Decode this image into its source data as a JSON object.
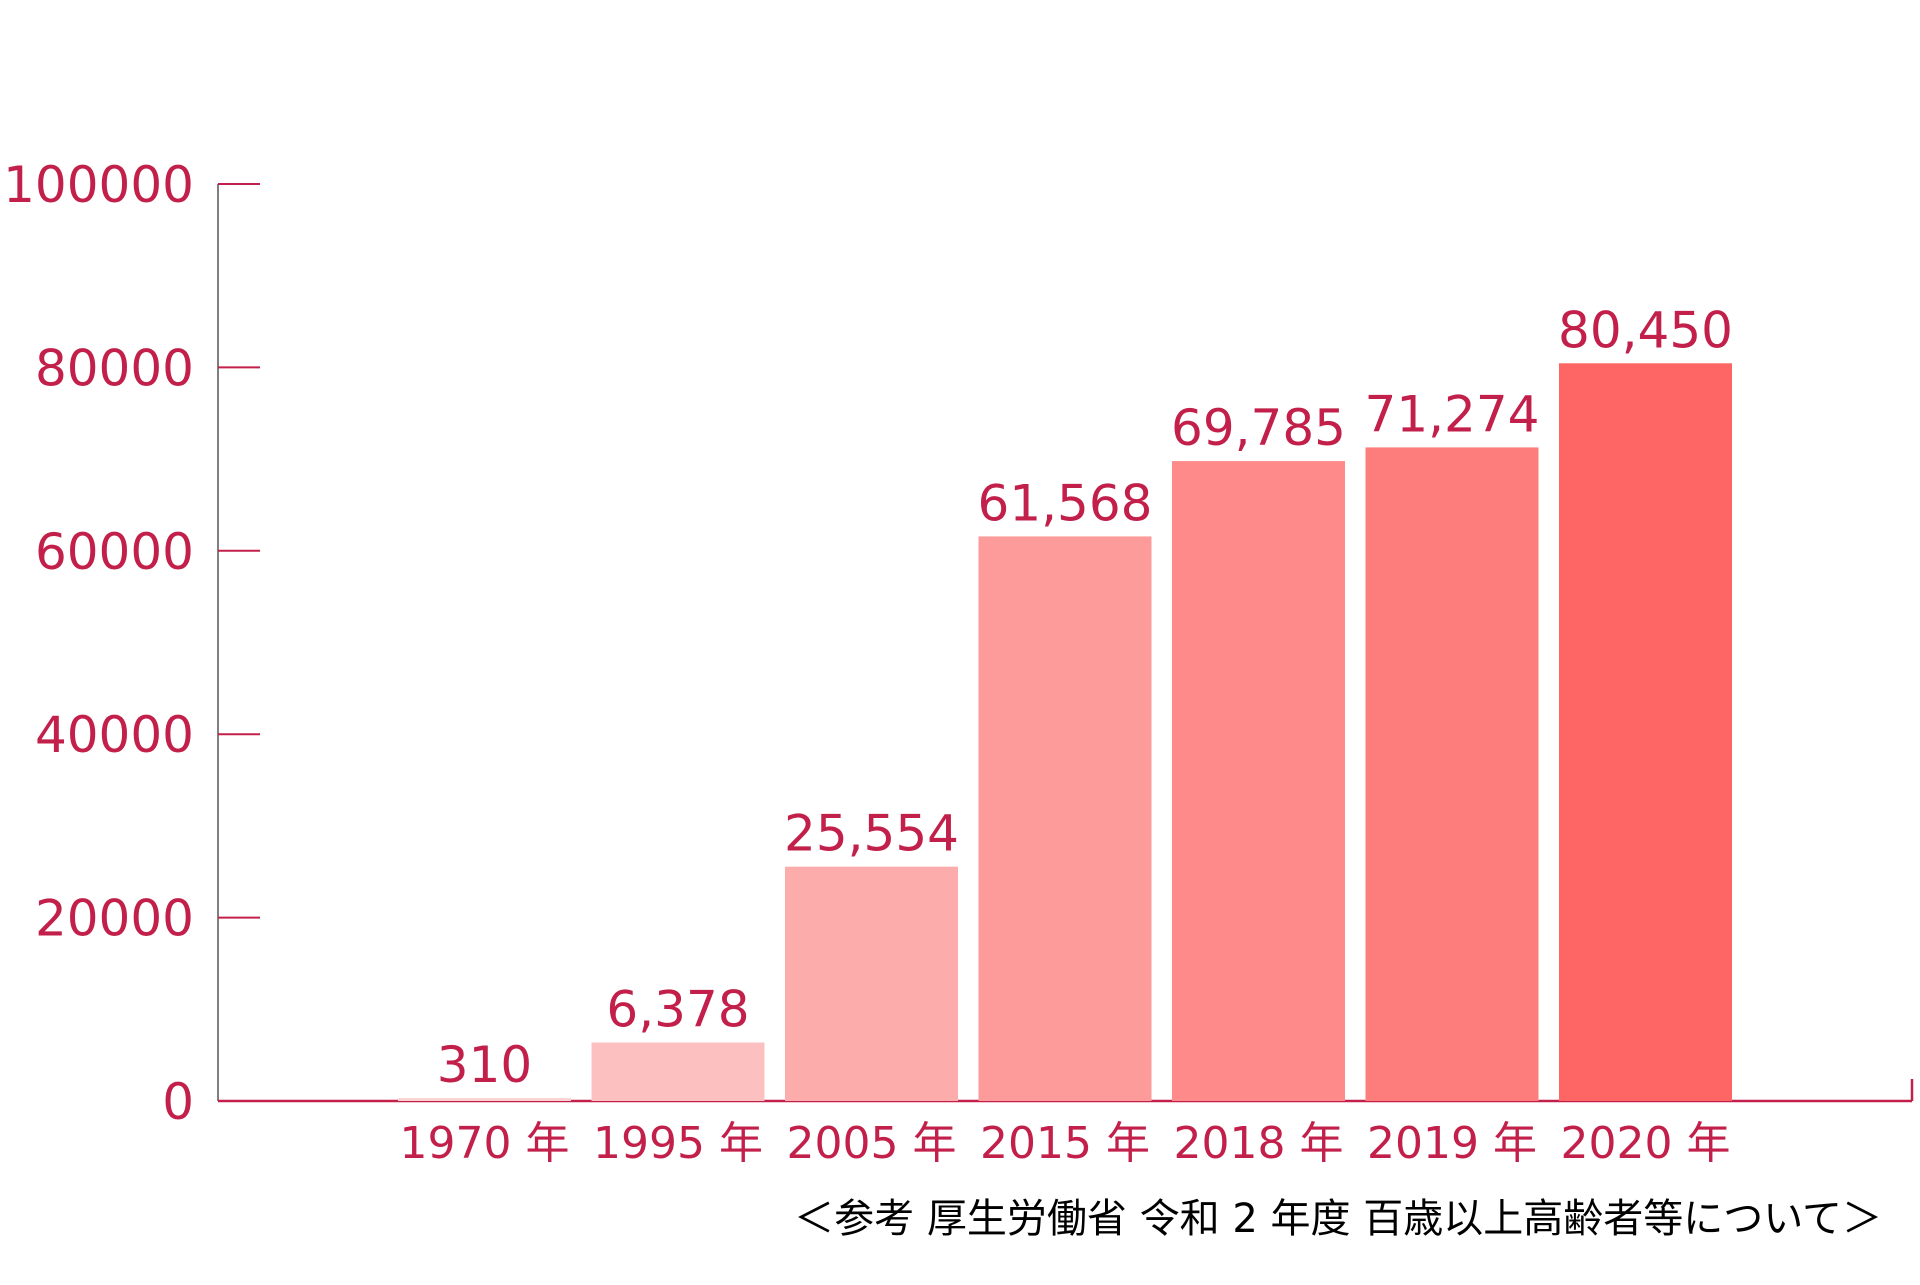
{
  "chart_data": {
    "type": "bar",
    "categories": [
      "1970 年",
      "1995 年",
      "2005 年",
      "2015 年",
      "2018 年",
      "2019 年",
      "2020 年"
    ],
    "values": [
      310,
      6378,
      25554,
      61568,
      69785,
      71274,
      80450
    ],
    "value_labels": [
      "310",
      "6,378",
      "25,554",
      "61,568",
      "69,785",
      "71,274",
      "80,450"
    ],
    "ylim": [
      0,
      100000
    ],
    "yticks": [
      0,
      20000,
      40000,
      60000,
      80000,
      100000
    ],
    "ytick_labels": [
      "0",
      "20000",
      "40000",
      "60000",
      "80000",
      "100000"
    ],
    "grid": false,
    "title": "",
    "xlabel": "",
    "ylabel": "",
    "source_note": "＜参考 厚生労働省 令和 2 年度 百歳以上高齢者等について＞",
    "colors": {
      "text": "#c2204a",
      "axis": "#c2204a",
      "tick": "#c2204a",
      "bars": [
        "#fcd3d3",
        "#fdc0c0",
        "#fdacac",
        "#fd9a9a",
        "#fe8a8a",
        "#fd7d7d",
        "#fe6666"
      ]
    }
  }
}
